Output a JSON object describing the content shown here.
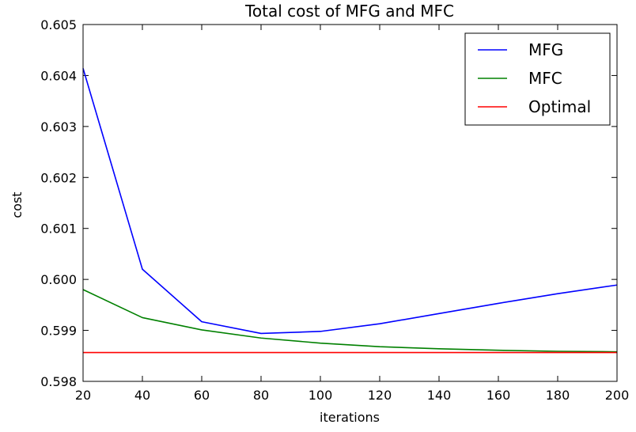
{
  "chart_data": {
    "type": "line",
    "title": "Total cost of MFG and MFC",
    "xlabel": "iterations",
    "ylabel": "cost",
    "xlim": [
      20,
      200
    ],
    "ylim": [
      0.598,
      0.605
    ],
    "xticks": [
      20,
      40,
      60,
      80,
      100,
      120,
      140,
      160,
      180,
      200
    ],
    "xtick_labels": [
      "20",
      "40",
      "60",
      "80",
      "100",
      "120",
      "140",
      "160",
      "180",
      "200"
    ],
    "yticks": [
      0.598,
      0.599,
      0.6,
      0.601,
      0.602,
      0.603,
      0.604,
      0.605
    ],
    "ytick_labels": [
      "0.598",
      "0.599",
      "0.600",
      "0.601",
      "0.602",
      "0.603",
      "0.604",
      "0.605"
    ],
    "grid": false,
    "legend_position": "top-right",
    "x": [
      20,
      40,
      60,
      80,
      100,
      120,
      140,
      160,
      180,
      200
    ],
    "series": [
      {
        "name": "MFG",
        "color": "#0000ff",
        "values": [
          0.60414,
          0.6002,
          0.59917,
          0.59894,
          0.59898,
          0.59913,
          0.59933,
          0.59953,
          0.59972,
          0.59989
        ]
      },
      {
        "name": "MFC",
        "color": "#008000",
        "values": [
          0.5998,
          0.59925,
          0.59901,
          0.59885,
          0.59875,
          0.59868,
          0.59864,
          0.59861,
          0.59859,
          0.59858
        ]
      },
      {
        "name": "Optimal",
        "color": "#ff0000",
        "values": [
          0.598565,
          0.598565,
          0.598565,
          0.598565,
          0.598565,
          0.598565,
          0.598565,
          0.598565,
          0.598565,
          0.598565
        ]
      }
    ]
  }
}
